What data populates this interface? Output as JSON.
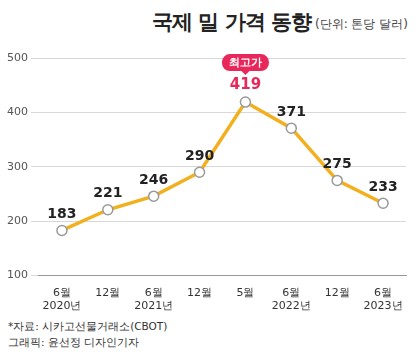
{
  "chart_data": {
    "type": "line",
    "title": "국제 밀 가격 동향",
    "subtitle": "(단위: 톤당 달러)",
    "categories": [
      [
        "6월",
        "2020년"
      ],
      "12월",
      [
        "6월",
        "2021년"
      ],
      "12월",
      "5월",
      [
        "6월",
        "2022년"
      ],
      "12월",
      [
        "6월",
        "2023년"
      ]
    ],
    "values": [
      183,
      221,
      246,
      290,
      419,
      371,
      275,
      233
    ],
    "color": "#f2b01e",
    "ylim": [
      100,
      500
    ],
    "yticks": [
      100,
      200,
      300,
      400,
      500
    ],
    "grid": true,
    "data_labels": true,
    "marker": "circle",
    "annotation": "최고가",
    "source": "*자료: 시카고선물거래소(CBOT)",
    "credit": "그래픽: 윤선정 디자인기자"
  }
}
